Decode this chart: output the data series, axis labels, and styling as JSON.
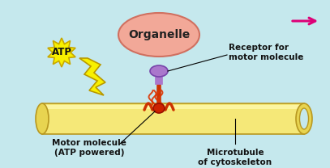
{
  "bg_color": "#c5e8ed",
  "organelle_color": "#f2a898",
  "organelle_edge": "#d07060",
  "microtubule_body": "#f5e878",
  "microtubule_edge": "#b89820",
  "microtubule_shade": "#e8d450",
  "receptor_color": "#aa77cc",
  "receptor_edge": "#7744aa",
  "motor_stem_color": "#cc3300",
  "motor_body_color": "#cc2200",
  "motor_arm_color": "#cc3300",
  "wavy_color": "#dd3300",
  "atp_fill": "#f8f000",
  "atp_edge": "#c8a800",
  "arrow_color": "#dd0077",
  "lightning_fill": "#f8f000",
  "lightning_edge": "#b89800",
  "label_color": "#111111",
  "organelle_label": "Organelle",
  "atp_label": "ATP",
  "receptor_label": "Receptor for\nmotor molecule",
  "motor_label": "Motor molecule\n(ATP powered)",
  "microtubule_label": "Microtubule\nof cytoskeleton"
}
